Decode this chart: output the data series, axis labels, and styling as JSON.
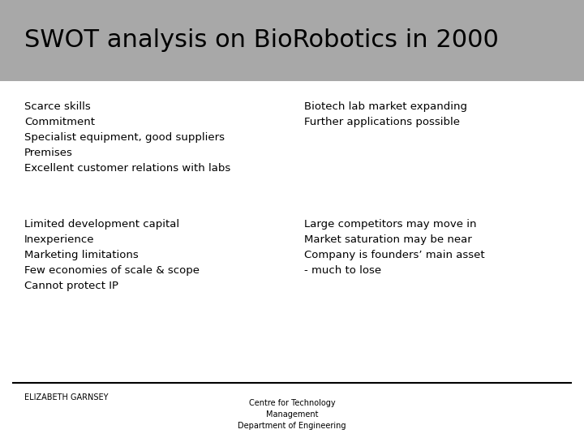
{
  "title": "SWOT analysis on BioRobotics in 2000",
  "title_bg_color": "#a8a8a8",
  "title_fontsize": 22,
  "background_color": "#ffffff",
  "strengths": [
    "Scarce skills",
    "Commitment",
    "Specialist equipment, good suppliers",
    "Premises",
    "Excellent customer relations with labs"
  ],
  "opportunities": [
    "Biotech lab market expanding",
    "Further applications possible"
  ],
  "weaknesses": [
    "Limited development capital",
    "Inexperience",
    "Marketing limitations",
    "Few economies of scale & scope",
    "Cannot protect IP"
  ],
  "threats": [
    "Large competitors may move in",
    "Market saturation may be near",
    "Company is founders’ main asset",
    "- much to lose"
  ],
  "footer_left": "ELIZABETH GARNSEY",
  "footer_center_line1": "Centre for Technology",
  "footer_center_line2": "Management",
  "footer_center_line3": "Department of Engineering",
  "text_color": "#000000",
  "text_fontsize": 9.5,
  "footer_fontsize": 7
}
